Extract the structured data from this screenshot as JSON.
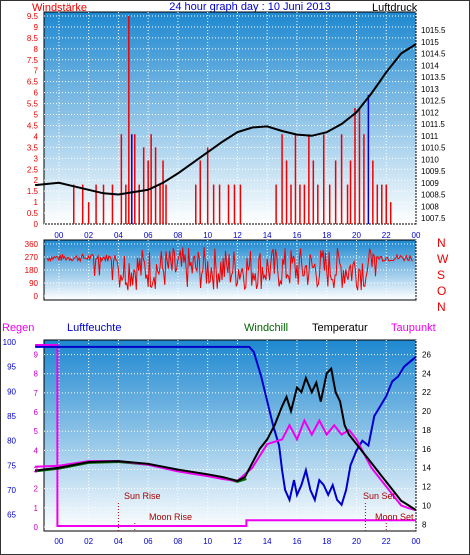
{
  "header": {
    "left_title": "Windstärke",
    "title": "24 hour graph day : 10 Juni 2013",
    "right_title": "Luftdruck"
  },
  "lower_header": {
    "regen": "Regen",
    "luftfeuchte": "Luftfeuchte",
    "windchill": "Windchill",
    "temperatur": "Temperatur",
    "taupunkt": "Taupunkt"
  },
  "annotations": {
    "sun_rise": "Sun Rise",
    "moon_rise": "Moon Rise",
    "sun_set": "Sun Set",
    "moon_set": "Moon Set"
  },
  "colors": {
    "red": "#ee0000",
    "blue": "#0000cc",
    "green": "#006600",
    "magenta": "#ee00ee",
    "black": "#000000",
    "sky_top": "#1e88d0",
    "sky_bottom": "#ffffff"
  },
  "chart_data": [
    {
      "type": "line",
      "name": "wind-pressure",
      "x_ticks": [
        "00",
        "02",
        "04",
        "06",
        "08",
        "10",
        "12",
        "14",
        "16",
        "18",
        "20",
        "22",
        "00"
      ],
      "y_left_ticks": [
        "0",
        "0.5",
        "1",
        "1.5",
        "2",
        "2.5",
        "3",
        "3.5",
        "4",
        "4.5",
        "5",
        "5.5",
        "6",
        "6.5",
        "7",
        "7.5",
        "8",
        "8.5",
        "9",
        "9.5"
      ],
      "y_left_range": [
        0,
        9.5
      ],
      "y_right_ticks": [
        "1007.5",
        "1008",
        "1008.5",
        "1009",
        "1009.5",
        "1010",
        "1010.5",
        "1011",
        "1011.5",
        "1012",
        "1012.5",
        "1013",
        "1013.5",
        "1014",
        "1014.5",
        "1015",
        "1015.5"
      ],
      "y_right_range": [
        1007.5,
        1015.5
      ],
      "x_range": [
        -1,
        24
      ],
      "pressure": {
        "x": [
          -1.6,
          0,
          1,
          2,
          3,
          4,
          5,
          6,
          7,
          8,
          9,
          10,
          11,
          12,
          13,
          14,
          15,
          16,
          17,
          18,
          19,
          20,
          21,
          22,
          23,
          24
        ],
        "y": [
          1008.9,
          1009.0,
          1008.85,
          1008.7,
          1008.55,
          1008.5,
          1008.6,
          1008.7,
          1009.0,
          1009.4,
          1009.85,
          1010.3,
          1010.75,
          1011.15,
          1011.35,
          1011.4,
          1011.2,
          1011.05,
          1011.0,
          1011.15,
          1011.5,
          1012.0,
          1012.8,
          1013.7,
          1014.5,
          1014.9
        ]
      },
      "wind_bars": {
        "x": [
          1.0,
          1.6,
          2.0,
          2.5,
          3.0,
          3.6,
          4.2,
          4.5,
          4.7,
          4.9,
          5.1,
          5.4,
          5.7,
          6.0,
          6.2,
          6.5,
          6.8,
          7.0,
          7.2,
          9.2,
          9.5,
          10.0,
          10.4,
          10.8,
          11.4,
          11.8,
          12.2,
          14.6,
          15.0,
          15.3,
          15.6,
          15.9,
          16.2,
          16.5,
          16.8,
          17.1,
          17.4,
          17.8,
          18.2,
          18.6,
          19.0,
          19.4,
          19.6,
          19.9,
          20.2,
          20.5,
          20.8,
          21.1,
          21.4,
          21.7,
          22.0,
          22.3
        ],
        "values": [
          1.8,
          1.8,
          1.0,
          1.8,
          1.8,
          1.8,
          4.1,
          1.8,
          9.5,
          4.1,
          4.1,
          1.8,
          3.5,
          2.9,
          4.1,
          3.5,
          1.8,
          2.9,
          1.8,
          1.8,
          2.9,
          3.5,
          1.8,
          1.8,
          1.8,
          1.8,
          1.8,
          1.8,
          4.1,
          2.9,
          1.8,
          4.1,
          1.8,
          1.8,
          4.1,
          2.9,
          1.8,
          4.1,
          1.8,
          2.9,
          4.1,
          1.8,
          2.9,
          5.3,
          5.3,
          4.1,
          5.9,
          2.9,
          1.8,
          1.8,
          1.8,
          1.0
        ]
      }
    },
    {
      "type": "line",
      "name": "wind-direction",
      "x_range": [
        -1,
        24
      ],
      "y_ticks": [
        "0",
        "90",
        "180",
        "270",
        "360"
      ],
      "y_range": [
        0,
        360
      ],
      "compass_labels": [
        "N",
        "W",
        "S",
        "O",
        "N"
      ]
    },
    {
      "type": "line",
      "name": "humidity-temperature",
      "x_ticks": [
        "00",
        "02",
        "04",
        "06",
        "08",
        "10",
        "12",
        "14",
        "16",
        "18",
        "20",
        "22",
        "00"
      ],
      "x_range": [
        -1,
        24
      ],
      "y_humidity_ticks": [
        "65",
        "70",
        "75",
        "80",
        "85",
        "90",
        "95",
        "100"
      ],
      "y_humidity_range": [
        62.5,
        100
      ],
      "y_rain_ticks": [
        "0",
        "1",
        "2",
        "3",
        "4",
        "5",
        "6",
        "7",
        "8",
        "9"
      ],
      "y_rain_range": [
        0,
        9.5
      ],
      "y_temp_ticks": [
        "8",
        "10",
        "12",
        "14",
        "16",
        "18",
        "20",
        "22",
        "24",
        "26"
      ],
      "y_temp_range": [
        7.5,
        27
      ],
      "humidity": {
        "x": [
          -1.6,
          12.8,
          13.1,
          13.6,
          14.0,
          14.4,
          14.8,
          15.0,
          15.2,
          15.5,
          15.8,
          16.0,
          16.3,
          16.6,
          16.9,
          17.2,
          17.5,
          17.8,
          18.1,
          18.4,
          18.7,
          19.0,
          19.3,
          19.6,
          20.0,
          20.4,
          20.8,
          21.2,
          21.6,
          22.0,
          22.4,
          22.8,
          23.2,
          23.6,
          24.0
        ],
        "y": [
          99,
          99,
          98,
          93,
          88,
          83,
          79,
          74,
          70,
          68,
          72,
          69,
          71,
          74,
          70,
          68,
          72,
          71,
          69,
          71,
          68,
          67,
          70,
          75,
          78,
          80,
          79,
          85,
          87,
          89,
          92,
          93,
          95,
          96,
          97
        ]
      },
      "temperature": {
        "x": [
          -1.6,
          0,
          2,
          4,
          6,
          8,
          10,
          11,
          12,
          12.5,
          13,
          13.5,
          14.0,
          14.5,
          15.0,
          15.3,
          15.6,
          16.0,
          16.3,
          16.6,
          17.0,
          17.3,
          17.6,
          18.0,
          18.3,
          18.6,
          18.9,
          19.2,
          19.5,
          20.0,
          20.5,
          21.0,
          21.5,
          22.0,
          22.5,
          23.0,
          23.5,
          24.0
        ],
        "y": [
          13.7,
          14.0,
          14.6,
          14.7,
          14.4,
          13.8,
          13.3,
          13.0,
          12.6,
          13.0,
          14.5,
          16.0,
          17.0,
          18.5,
          20.5,
          21.5,
          20.0,
          22.5,
          22.0,
          23.5,
          22.0,
          23.0,
          21.0,
          24.0,
          24.5,
          22.0,
          21.0,
          18.5,
          17.5,
          16.5,
          15.5,
          14.5,
          13.5,
          12.5,
          11.5,
          10.5,
          10.0,
          9.5
        ]
      },
      "dewpoint": {
        "x": [
          -1.6,
          0,
          2,
          4,
          6,
          8,
          10,
          11,
          12,
          13,
          14,
          15.0,
          15.5,
          16.0,
          16.5,
          17.0,
          17.5,
          18.0,
          18.5,
          19.0,
          19.5,
          20.0,
          20.5,
          21.0,
          21.5,
          22.0,
          22.5,
          23.0,
          23.5,
          24.0
        ],
        "y": [
          14.1,
          14.2,
          14.7,
          14.7,
          14.3,
          13.6,
          13.1,
          12.8,
          12.6,
          14.0,
          16.5,
          17.0,
          18.5,
          17.0,
          19.0,
          17.5,
          19.0,
          17.5,
          18.5,
          17.5,
          18.0,
          17.0,
          15.5,
          14.0,
          13.0,
          12.0,
          11.0,
          10.0,
          9.7,
          9.5
        ]
      },
      "windchill": {
        "x": [
          -1.6,
          0,
          2,
          4,
          6,
          8,
          10,
          11,
          12,
          12.6
        ],
        "y": [
          13.6,
          13.9,
          14.5,
          14.6,
          14.3,
          13.7,
          13.2,
          12.9,
          12.5,
          12.8
        ]
      },
      "rain": {
        "x": [
          -1.6,
          -0.1,
          -0.1,
          12.6,
          12.6,
          24.0
        ],
        "y": [
          9.5,
          9.5,
          0.05,
          0.05,
          0.35,
          0.35
        ]
      },
      "markers": {
        "sun_rise_x": 4.0,
        "moon_rise_x": 5.1,
        "sun_set_x": 20.6,
        "moon_set_x": 22.0
      }
    }
  ]
}
